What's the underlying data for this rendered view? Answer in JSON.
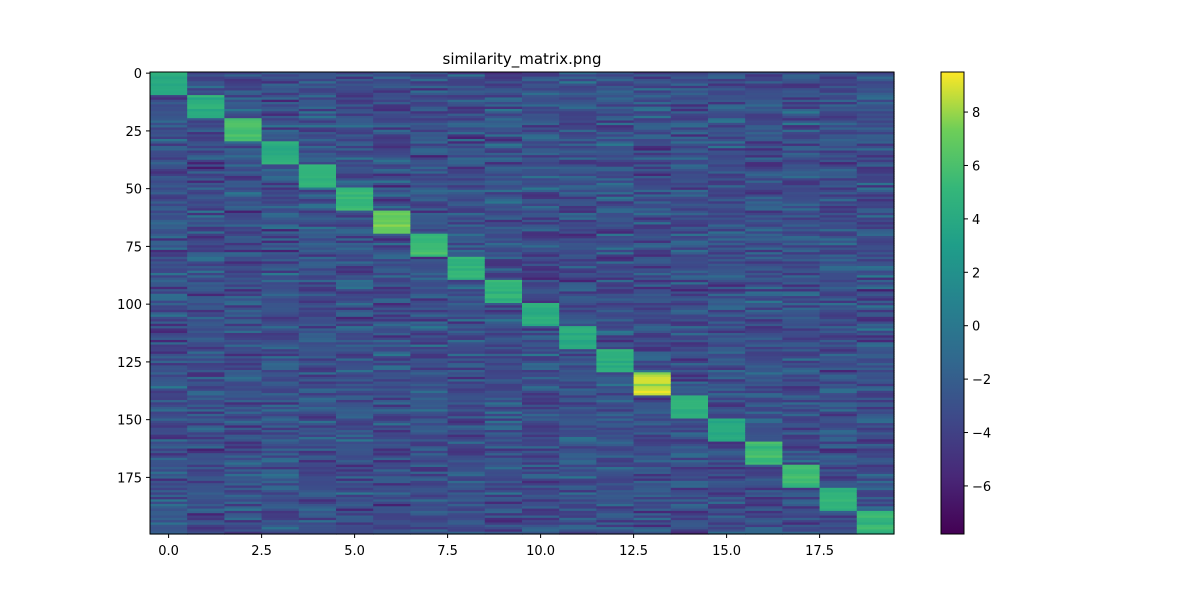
{
  "chart_data": {
    "type": "heatmap",
    "title": "similarity_matrix.png",
    "xlabel": "",
    "ylabel": "",
    "n_cols": 20,
    "n_rows": 200,
    "x_range": [
      -0.5,
      19.5
    ],
    "y_range": [
      -0.5,
      199.5
    ],
    "y_inverted": true,
    "x_ticks": [
      "0.0",
      "2.5",
      "5.0",
      "7.5",
      "10.0",
      "12.5",
      "15.0",
      "17.5"
    ],
    "x_tick_values": [
      0,
      2.5,
      5,
      7.5,
      10,
      12.5,
      15,
      17.5
    ],
    "y_ticks": [
      "0",
      "25",
      "50",
      "75",
      "100",
      "125",
      "150",
      "175"
    ],
    "y_tick_values": [
      0,
      25,
      50,
      75,
      100,
      125,
      150,
      175
    ],
    "colormap": "viridis",
    "color_range": [
      -7.8,
      9.5
    ],
    "colorbar_ticks": [
      "8",
      "6",
      "4",
      "2",
      "0",
      "−2",
      "−4",
      "−6"
    ],
    "colorbar_tick_values": [
      8,
      6,
      4,
      2,
      0,
      -2,
      -4,
      -6
    ],
    "background_mean": -3.0,
    "diagonal_blocks": [
      {
        "col": 0,
        "rows": [
          0,
          9
        ],
        "value": 4.0
      },
      {
        "col": 1,
        "rows": [
          10,
          19
        ],
        "value": 4.5
      },
      {
        "col": 2,
        "rows": [
          20,
          29
        ],
        "value": 6.0
      },
      {
        "col": 3,
        "rows": [
          30,
          39
        ],
        "value": 4.5
      },
      {
        "col": 4,
        "rows": [
          40,
          49
        ],
        "value": 5.0
      },
      {
        "col": 5,
        "rows": [
          50,
          59
        ],
        "value": 5.0
      },
      {
        "col": 6,
        "rows": [
          60,
          69
        ],
        "value": 7.0
      },
      {
        "col": 7,
        "rows": [
          70,
          79
        ],
        "value": 5.5
      },
      {
        "col": 8,
        "rows": [
          80,
          89
        ],
        "value": 5.0
      },
      {
        "col": 9,
        "rows": [
          90,
          99
        ],
        "value": 5.0
      },
      {
        "col": 10,
        "rows": [
          100,
          109
        ],
        "value": 4.5
      },
      {
        "col": 11,
        "rows": [
          110,
          119
        ],
        "value": 4.0
      },
      {
        "col": 12,
        "rows": [
          120,
          129
        ],
        "value": 4.5
      },
      {
        "col": 13,
        "rows": [
          130,
          139
        ],
        "value": 8.5
      },
      {
        "col": 14,
        "rows": [
          140,
          149
        ],
        "value": 4.5
      },
      {
        "col": 15,
        "rows": [
          150,
          159
        ],
        "value": 4.0
      },
      {
        "col": 16,
        "rows": [
          160,
          169
        ],
        "value": 5.5
      },
      {
        "col": 17,
        "rows": [
          170,
          179
        ],
        "value": 5.5
      },
      {
        "col": 18,
        "rows": [
          180,
          189
        ],
        "value": 5.0
      },
      {
        "col": 19,
        "rows": [
          190,
          199
        ],
        "value": 5.0
      }
    ]
  }
}
